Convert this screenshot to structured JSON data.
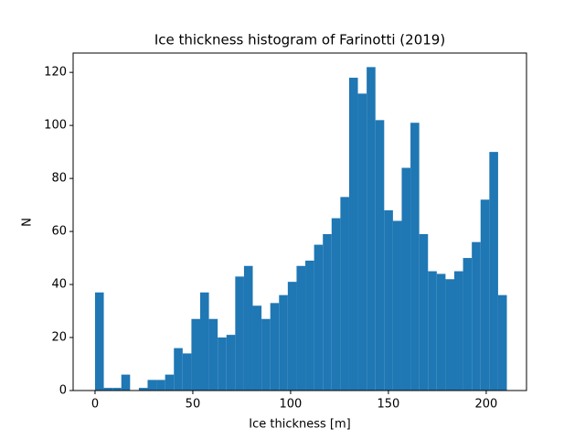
{
  "chart_data": {
    "type": "histogram",
    "title": "Ice thickness histogram of Farinotti (2019)",
    "x_label": "Ice thickness [m]",
    "y_label": "N",
    "color": "#1f77b4",
    "bins": [
      0,
      4.48,
      8.96,
      13.44,
      17.92,
      22.4,
      26.88,
      31.36,
      35.84,
      40.32,
      44.8,
      49.28,
      53.76,
      58.24,
      62.72,
      67.2,
      71.68,
      76.16,
      80.64,
      85.12,
      89.6,
      94.08,
      98.56,
      103.04,
      107.52,
      112,
      116.48,
      120.96,
      125.44,
      129.92,
      134.4,
      138.88,
      143.36,
      147.84,
      152.32,
      156.8,
      161.28,
      165.76,
      170.24,
      174.72,
      179.2,
      183.68,
      188.16,
      192.64,
      197.12,
      201.6,
      206.08,
      210.56
    ],
    "values": [
      37,
      1,
      1,
      6,
      0,
      1,
      4,
      4,
      6,
      16,
      14,
      27,
      37,
      27,
      20,
      21,
      43,
      47,
      32,
      27,
      33,
      36,
      41,
      47,
      49,
      55,
      59,
      65,
      73,
      118,
      112,
      122,
      102,
      68,
      64,
      84,
      101,
      59,
      45,
      44,
      42,
      45,
      50,
      56,
      72,
      90,
      36
    ],
    "xlim": [
      -11.2,
      220.6
    ],
    "ylim": [
      0,
      127.3
    ],
    "xticks": [
      0,
      50,
      100,
      150,
      200
    ],
    "yticks": [
      0,
      20,
      40,
      60,
      80,
      100,
      120
    ]
  }
}
